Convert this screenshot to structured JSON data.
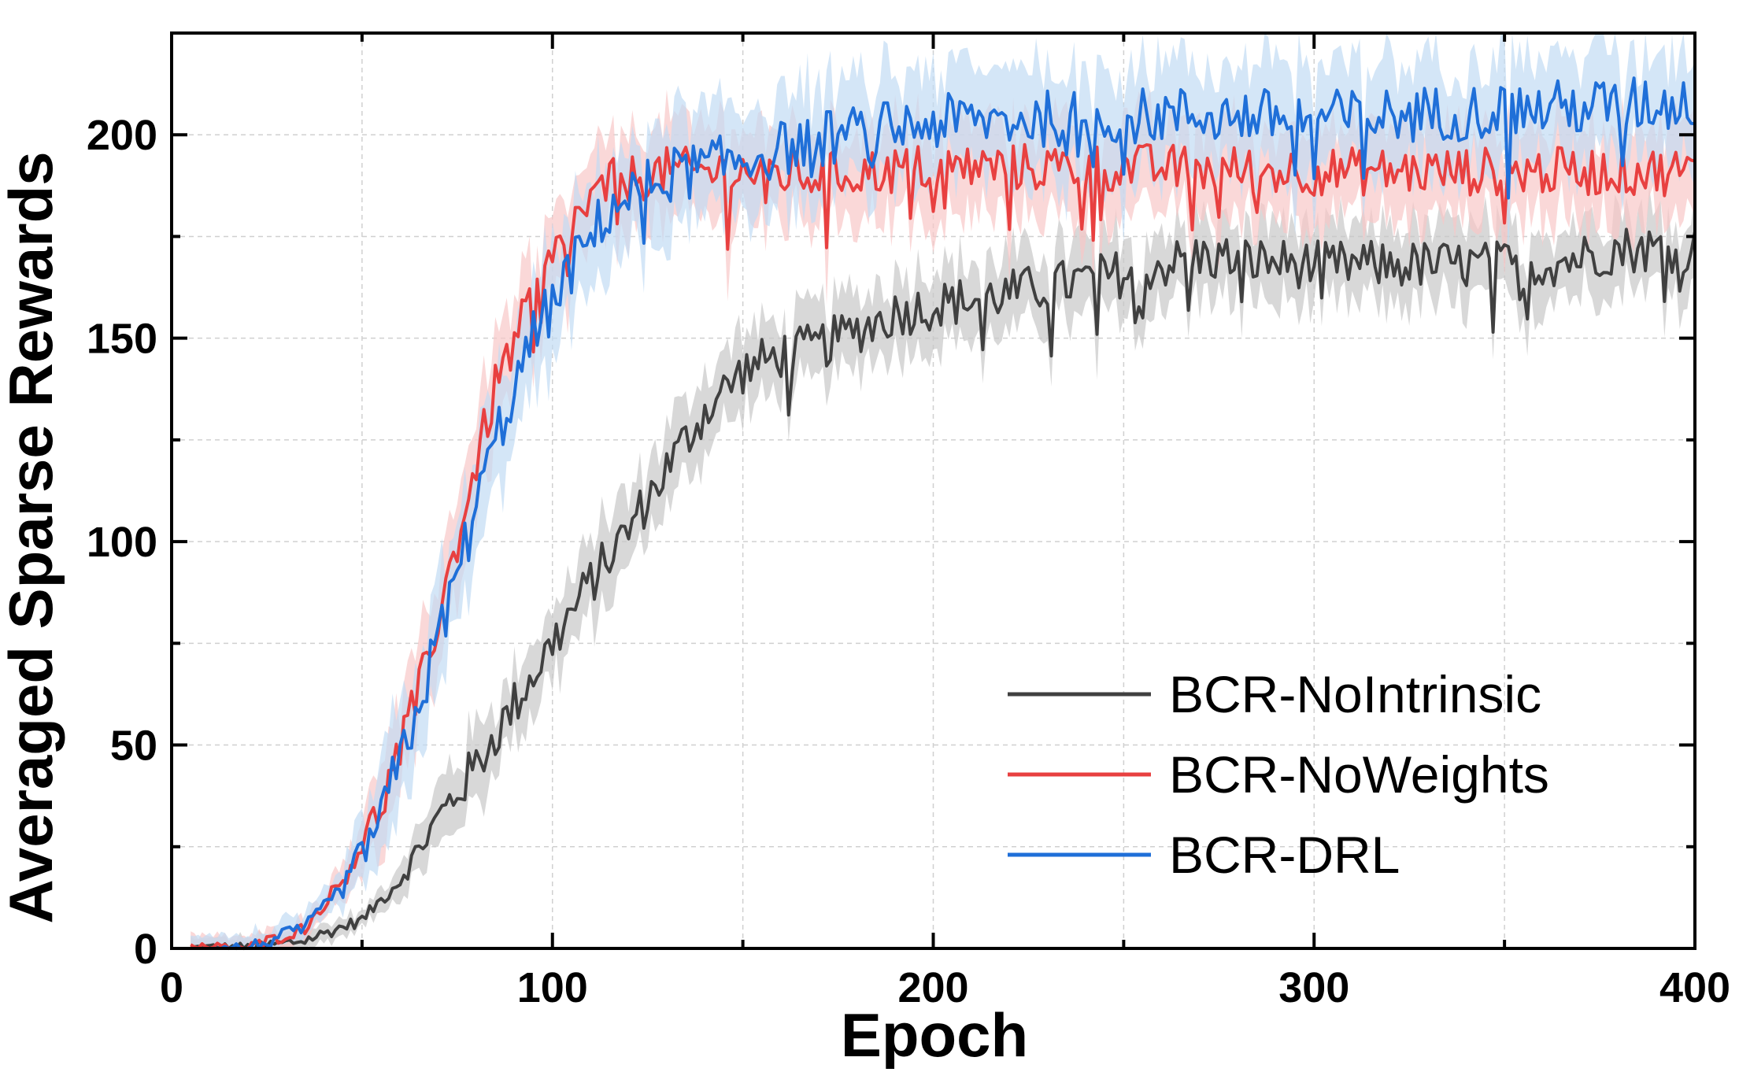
{
  "chart_data": {
    "type": "line",
    "xlabel": "Epoch",
    "ylabel": "Averaged Sparse Rewards",
    "xlim": [
      0,
      400
    ],
    "ylim": [
      0,
      225
    ],
    "xticks": [
      0,
      100,
      200,
      300,
      400
    ],
    "xtick_labels": [
      "0",
      "100",
      "200",
      "300",
      "400"
    ],
    "yticks": [
      0,
      50,
      100,
      150,
      200
    ],
    "ytick_labels": [
      "0",
      "50",
      "100",
      "150",
      "200"
    ],
    "minor_xticks": [
      50,
      150,
      250,
      350
    ],
    "minor_yticks": [
      25,
      75,
      125,
      175
    ],
    "grid": true,
    "legend_position": "bottom-right",
    "series": [
      {
        "name": "BCR-NoIntrinsic",
        "color": "#404040",
        "band_color": "#c8c8c8",
        "anchors": [
          [
            5,
            0
          ],
          [
            20,
            0
          ],
          [
            35,
            2
          ],
          [
            50,
            7
          ],
          [
            60,
            17
          ],
          [
            70,
            32
          ],
          [
            80,
            45
          ],
          [
            90,
            60
          ],
          [
            100,
            75
          ],
          [
            110,
            90
          ],
          [
            120,
            103
          ],
          [
            130,
            118
          ],
          [
            140,
            132
          ],
          [
            150,
            142
          ],
          [
            160,
            146
          ],
          [
            170,
            148
          ],
          [
            180,
            152
          ],
          [
            190,
            156
          ],
          [
            200,
            158
          ],
          [
            220,
            161
          ],
          [
            250,
            166
          ],
          [
            270,
            170
          ],
          [
            300,
            168
          ],
          [
            330,
            168
          ],
          [
            360,
            168
          ],
          [
            380,
            172
          ],
          [
            400,
            172
          ]
        ],
        "noise": 6,
        "band": 9
      },
      {
        "name": "BCR-NoWeights",
        "color": "#e84040",
        "band_color": "#f8c8c8",
        "anchors": [
          [
            5,
            0
          ],
          [
            20,
            0
          ],
          [
            35,
            5
          ],
          [
            45,
            17
          ],
          [
            55,
            35
          ],
          [
            65,
            63
          ],
          [
            75,
            100
          ],
          [
            85,
            138
          ],
          [
            95,
            160
          ],
          [
            105,
            178
          ],
          [
            115,
            188
          ],
          [
            130,
            191
          ],
          [
            150,
            191
          ],
          [
            170,
            190
          ],
          [
            200,
            192
          ],
          [
            250,
            192
          ],
          [
            300,
            191
          ],
          [
            350,
            191
          ],
          [
            400,
            191
          ]
        ],
        "noise": 6,
        "band": 11
      },
      {
        "name": "BCR-DRL",
        "color": "#1f6fd8",
        "band_color": "#c2dbf4",
        "anchors": [
          [
            5,
            0
          ],
          [
            20,
            0
          ],
          [
            35,
            5
          ],
          [
            45,
            15
          ],
          [
            55,
            32
          ],
          [
            65,
            60
          ],
          [
            75,
            92
          ],
          [
            85,
            125
          ],
          [
            95,
            150
          ],
          [
            105,
            167
          ],
          [
            115,
            182
          ],
          [
            130,
            190
          ],
          [
            150,
            194
          ],
          [
            170,
            199
          ],
          [
            200,
            203
          ],
          [
            230,
            204
          ],
          [
            270,
            205
          ],
          [
            300,
            204
          ],
          [
            350,
            206
          ],
          [
            400,
            208
          ]
        ],
        "noise": 7,
        "band": 13
      }
    ]
  }
}
